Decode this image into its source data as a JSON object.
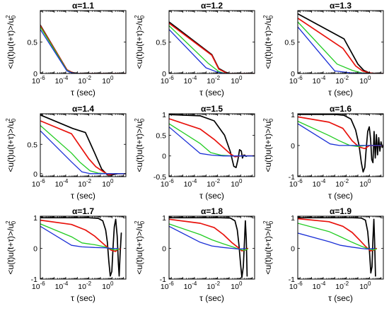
{
  "figure": {
    "ylabel_text": "<u(t)u(t+τ)>/u",
    "ylabel_sup": "2",
    "ylabel_sub": "0",
    "xlabel_text": "τ (sec)",
    "title_prefix": "α",
    "x_ticks": [
      {
        "exp": -6,
        "base": "10",
        "sup": "-6"
      },
      {
        "exp": -4,
        "base": "10",
        "sup": "-4"
      },
      {
        "exp": -2,
        "base": "10",
        "sup": "-2"
      },
      {
        "exp": 0,
        "base": "10",
        "sup": "0"
      }
    ],
    "colors": {
      "black": "#000000",
      "red": "#e8120c",
      "green": "#22cc22",
      "blue": "#1a2fd6"
    }
  },
  "chart_data": [
    {
      "type": "line",
      "title": "α=1.1",
      "xscale": "log",
      "xlim": [
        -6.2,
        1.2
      ],
      "ylim": [
        0,
        1
      ],
      "yticks": [
        0,
        0.5
      ],
      "series": [
        {
          "color": "black",
          "x": [
            -6.2,
            -3.9,
            -3.5,
            -3.2,
            -2.8,
            -2.4,
            1.2
          ],
          "y": [
            0.77,
            0.06,
            0.02,
            0.005,
            0.0,
            0.0,
            0.0
          ]
        },
        {
          "color": "red",
          "x": [
            -6.2,
            -3.9,
            -3.5,
            -3.2,
            -2.8,
            -2.4,
            1.2
          ],
          "y": [
            0.76,
            0.06,
            0.02,
            0.005,
            0.0,
            0.0,
            0.0
          ]
        },
        {
          "color": "green",
          "x": [
            -6.2,
            -3.9,
            -3.5,
            -3.2,
            -2.8,
            -2.4,
            1.2
          ],
          "y": [
            0.74,
            0.05,
            0.015,
            0.004,
            0.0,
            0.0,
            0.0
          ]
        },
        {
          "color": "blue",
          "x": [
            -6.2,
            -3.9,
            -3.5,
            -3.2,
            -2.8,
            -2.4,
            1.2
          ],
          "y": [
            0.7,
            0.04,
            0.012,
            0.003,
            0.0,
            0.0,
            0.0
          ]
        }
      ]
    },
    {
      "type": "line",
      "title": "α=1.2",
      "xscale": "log",
      "xlim": [
        -6.2,
        1.2
      ],
      "ylim": [
        0,
        1
      ],
      "yticks": [
        0,
        0.5
      ],
      "series": [
        {
          "color": "black",
          "x": [
            -6.2,
            -2.5,
            -1.9,
            -1.3,
            -1.0,
            0.0,
            1.2
          ],
          "y": [
            0.82,
            0.3,
            0.08,
            0.02,
            0.0,
            0.0,
            0.0
          ]
        },
        {
          "color": "red",
          "x": [
            -6.2,
            -2.5,
            -1.9,
            -1.3,
            -1.0,
            0.0,
            1.2
          ],
          "y": [
            0.8,
            0.29,
            0.07,
            0.015,
            0.0,
            0.0,
            0.0
          ]
        },
        {
          "color": "green",
          "x": [
            -6.2,
            -2.8,
            -1.9,
            -1.4,
            0.0,
            1.2
          ],
          "y": [
            0.76,
            0.16,
            0.03,
            0.0,
            0.0,
            0.0
          ]
        },
        {
          "color": "blue",
          "x": [
            -6.2,
            -3.0,
            -2.0,
            -1.4,
            0.0,
            1.2
          ],
          "y": [
            0.7,
            0.09,
            0.02,
            0.0,
            0.0,
            0.0
          ]
        }
      ]
    },
    {
      "type": "line",
      "title": "α=1.3",
      "xscale": "log",
      "xlim": [
        -6.2,
        1.2
      ],
      "ylim": [
        0,
        1
      ],
      "yticks": [
        0,
        0.5
      ],
      "series": [
        {
          "color": "black",
          "x": [
            -6.2,
            -2.2,
            -1.0,
            -0.5,
            0.0,
            0.4,
            1.2
          ],
          "y": [
            0.95,
            0.55,
            0.15,
            0.05,
            0.01,
            0.0,
            0.0
          ]
        },
        {
          "color": "red",
          "x": [
            -6.2,
            -2.3,
            -1.2,
            -0.6,
            0.0,
            0.4,
            1.2
          ],
          "y": [
            0.88,
            0.4,
            0.12,
            0.04,
            0.01,
            0.0,
            0.0
          ]
        },
        {
          "color": "green",
          "x": [
            -6.2,
            -2.8,
            -1.5,
            -0.7,
            0.0,
            1.2
          ],
          "y": [
            0.82,
            0.15,
            0.05,
            0.01,
            0.0,
            0.0
          ]
        },
        {
          "color": "blue",
          "x": [
            -6.2,
            -3.0,
            -1.6,
            0.0,
            1.2
          ],
          "y": [
            0.74,
            0.04,
            0.01,
            0.0,
            0.0
          ]
        }
      ]
    },
    {
      "type": "line",
      "title": "α=1.4",
      "xscale": "log",
      "xlim": [
        -6.2,
        1.2
      ],
      "ylim": [
        -0.05,
        1.02
      ],
      "yticks": [
        0,
        0.5
      ],
      "series": [
        {
          "color": "black",
          "x": [
            -6.2,
            -3.4,
            -2.3,
            -1.5,
            -0.9,
            -0.4,
            0.0,
            0.5,
            1.2
          ],
          "y": [
            1.0,
            0.77,
            0.7,
            0.35,
            0.08,
            -0.02,
            -0.02,
            0.0,
            0.0
          ]
        },
        {
          "color": "red",
          "x": [
            -6.2,
            -3.5,
            -2.7,
            -2.0,
            -1.4,
            -0.8,
            -0.3,
            0.2,
            1.2
          ],
          "y": [
            0.9,
            0.68,
            0.45,
            0.25,
            0.12,
            0.04,
            -0.02,
            0.0,
            0.0
          ]
        },
        {
          "color": "green",
          "x": [
            -6.2,
            -3.5,
            -2.8,
            -1.9,
            -1.2,
            -0.5,
            0.2,
            1.2
          ],
          "y": [
            0.82,
            0.35,
            0.2,
            0.05,
            0.01,
            0.0,
            0.0,
            0.0
          ]
        },
        {
          "color": "blue",
          "x": [
            -6.2,
            -3.5,
            -2.6,
            -1.9,
            -1.2,
            0.0,
            1.2
          ],
          "y": [
            0.73,
            0.2,
            0.03,
            0.0,
            0.0,
            0.0,
            0.0
          ]
        }
      ]
    },
    {
      "type": "line",
      "title": "α=1.5",
      "xscale": "log",
      "xlim": [
        -6.2,
        1.2
      ],
      "ylim": [
        -0.5,
        1.02
      ],
      "yticks": [
        -0.5,
        0,
        0.5,
        1
      ],
      "series": [
        {
          "color": "black",
          "x": [
            -6.2,
            -3.5,
            -2.3,
            -1.4,
            -0.9,
            -0.6,
            -0.4,
            -0.25,
            -0.1,
            0.05,
            0.15,
            0.25,
            0.35,
            0.45,
            0.55,
            1.2
          ],
          "y": [
            1.0,
            0.97,
            0.85,
            0.5,
            0.1,
            -0.25,
            -0.28,
            -0.1,
            0.15,
            0.12,
            -0.05,
            0.02,
            0.02,
            -0.01,
            0.0,
            0.0
          ]
        },
        {
          "color": "red",
          "x": [
            -6.2,
            -3.5,
            -2.3,
            -1.5,
            -0.9,
            -0.5,
            0.0,
            1.2
          ],
          "y": [
            0.9,
            0.65,
            0.4,
            0.2,
            0.05,
            -0.02,
            0.0,
            0.0
          ]
        },
        {
          "color": "green",
          "x": [
            -6.2,
            -3.5,
            -2.6,
            -1.7,
            -0.8,
            0.0,
            1.2
          ],
          "y": [
            0.78,
            0.3,
            0.08,
            0.02,
            0.0,
            0.0,
            0.0
          ]
        },
        {
          "color": "blue",
          "x": [
            -6.2,
            -3.5,
            -2.5,
            -1.5,
            0.0,
            1.2
          ],
          "y": [
            0.7,
            0.06,
            0.02,
            0.0,
            0.0,
            0.0
          ]
        }
      ]
    },
    {
      "type": "line",
      "title": "α=1.6",
      "xscale": "log",
      "xlim": [
        -6.2,
        1.2
      ],
      "ylim": [
        -1,
        1.02
      ],
      "yticks": [
        -1,
        0,
        1
      ],
      "series": [
        {
          "color": "black",
          "x": [
            -6.2,
            -3.0,
            -2.2,
            -1.6,
            -1.2,
            -0.9,
            -0.7,
            -0.55,
            -0.4,
            -0.28,
            -0.15,
            -0.02,
            0.1,
            0.2,
            0.3,
            0.4,
            0.5,
            0.6,
            0.7,
            0.8,
            0.9,
            1.0,
            1.1,
            1.2
          ],
          "y": [
            1.0,
            1.0,
            0.97,
            0.85,
            0.5,
            0.0,
            -0.55,
            -0.85,
            -0.7,
            -0.1,
            0.45,
            0.6,
            0.2,
            -0.45,
            -0.55,
            0.45,
            -0.4,
            0.35,
            -0.3,
            0.25,
            -0.18,
            0.12,
            -0.06,
            0.02
          ]
        },
        {
          "color": "red",
          "x": [
            -6.2,
            -3.5,
            -2.3,
            -1.5,
            -0.9,
            -0.4,
            0.0,
            1.2
          ],
          "y": [
            0.92,
            0.75,
            0.55,
            0.15,
            -0.05,
            -0.1,
            0.0,
            0.0
          ]
        },
        {
          "color": "green",
          "x": [
            -6.2,
            -3.5,
            -2.6,
            -1.7,
            -1.0,
            -0.3,
            1.2
          ],
          "y": [
            0.78,
            0.32,
            0.15,
            0.0,
            -0.03,
            0.0,
            0.0
          ]
        },
        {
          "color": "blue",
          "x": [
            -6.2,
            -3.4,
            -2.6,
            -1.5,
            0.0,
            1.2
          ],
          "y": [
            0.7,
            0.05,
            0.0,
            0.0,
            0.0,
            0.0
          ]
        }
      ]
    },
    {
      "type": "line",
      "title": "α=1.7",
      "xscale": "log",
      "xlim": [
        -6.2,
        1.2
      ],
      "ylim": [
        -1,
        1.05
      ],
      "yticks": [
        -1,
        0,
        1
      ],
      "series": [
        {
          "color": "black",
          "x": [
            -6.2,
            -2.0,
            -1.2,
            -0.8,
            -0.55,
            -0.4,
            -0.28,
            -0.15,
            -0.02,
            0.1,
            0.2,
            0.32,
            0.45,
            0.55,
            0.62,
            0.7,
            0.8
          ],
          "y": [
            1.0,
            1.0,
            0.98,
            0.9,
            0.6,
            0.2,
            -0.4,
            -0.9,
            -0.75,
            0.1,
            0.7,
            0.95,
            0.4,
            -0.5,
            -0.9,
            -0.2,
            0.5
          ]
        },
        {
          "color": "red",
          "x": [
            -6.2,
            -3.5,
            -2.3,
            -1.5,
            -0.6,
            -0.1,
            0.3,
            0.5,
            0.7
          ],
          "y": [
            0.92,
            0.78,
            0.6,
            0.4,
            0.1,
            -0.05,
            -0.1,
            -0.02,
            -0.02
          ]
        },
        {
          "color": "green",
          "x": [
            -6.2,
            -3.5,
            -2.6,
            -1.5,
            -0.6,
            -0.1,
            0.3,
            0.6
          ],
          "y": [
            0.8,
            0.38,
            0.18,
            0.12,
            0.05,
            -0.02,
            -0.05,
            -0.02
          ]
        },
        {
          "color": "blue",
          "x": [
            -6.2,
            -3.5,
            -2.6,
            -1.5,
            -0.6,
            0.0,
            0.5
          ],
          "y": [
            0.72,
            0.1,
            0.05,
            0.03,
            0.02,
            0.0,
            0.0
          ]
        }
      ]
    },
    {
      "type": "line",
      "title": "α=1.8",
      "xscale": "log",
      "xlim": [
        -6.2,
        1.2
      ],
      "ylim": [
        -1,
        1.05
      ],
      "yticks": [
        -1,
        0,
        1
      ],
      "series": [
        {
          "color": "black",
          "x": [
            -6.2,
            -1.8,
            -0.9,
            -0.5,
            -0.3,
            -0.15,
            -0.02,
            0.1,
            0.22,
            0.32,
            0.4,
            0.48,
            0.55
          ],
          "y": [
            1.0,
            1.0,
            0.99,
            0.9,
            0.6,
            0.1,
            -0.5,
            -0.95,
            -0.6,
            0.2,
            0.9,
            0.3,
            -0.9
          ]
        },
        {
          "color": "red",
          "x": [
            -6.2,
            -3.5,
            -2.3,
            -1.5,
            -0.8,
            -0.3,
            0.1,
            0.4,
            0.6
          ],
          "y": [
            0.95,
            0.82,
            0.68,
            0.45,
            0.2,
            0.05,
            -0.08,
            -0.05,
            0.0
          ]
        },
        {
          "color": "green",
          "x": [
            -6.2,
            -3.5,
            -2.5,
            -1.5,
            -0.7,
            -0.2,
            0.3,
            0.6
          ],
          "y": [
            0.8,
            0.45,
            0.28,
            0.15,
            0.05,
            -0.02,
            -0.06,
            -0.02
          ]
        },
        {
          "color": "blue",
          "x": [
            -6.2,
            -3.5,
            -2.5,
            -1.5,
            -0.7,
            -0.2,
            0.4
          ],
          "y": [
            0.72,
            0.2,
            0.08,
            0.03,
            0.0,
            -0.02,
            0.0
          ]
        }
      ]
    },
    {
      "type": "line",
      "title": "α=1.9",
      "xscale": "log",
      "xlim": [
        -6.2,
        1.2
      ],
      "ylim": [
        -1,
        1.05
      ],
      "yticks": [
        -1,
        0,
        1
      ],
      "series": [
        {
          "color": "black",
          "x": [
            -6.2,
            -1.5,
            -0.7,
            -0.35,
            -0.15,
            0.0,
            0.12,
            0.22,
            0.3,
            0.38,
            0.45,
            0.52
          ],
          "y": [
            1.0,
            1.0,
            0.99,
            0.92,
            0.55,
            -0.1,
            -0.8,
            -0.6,
            0.3,
            0.95,
            0.2,
            -0.9
          ]
        },
        {
          "color": "red",
          "x": [
            -6.2,
            -3.5,
            -2.3,
            -1.5,
            -0.8,
            -0.3,
            0.1,
            0.4,
            0.6
          ],
          "y": [
            0.97,
            0.87,
            0.72,
            0.52,
            0.25,
            0.05,
            -0.08,
            -0.05,
            0.0
          ]
        },
        {
          "color": "green",
          "x": [
            -6.2,
            -3.5,
            -2.5,
            -1.5,
            -0.7,
            -0.2,
            0.3,
            0.6
          ],
          "y": [
            0.82,
            0.55,
            0.38,
            0.2,
            0.07,
            0.0,
            -0.05,
            -0.02
          ]
        },
        {
          "color": "blue",
          "x": [
            -6.2,
            -3.5,
            -2.5,
            -1.5,
            -0.7,
            -0.2,
            0.4
          ],
          "y": [
            0.5,
            0.22,
            0.1,
            0.04,
            0.0,
            -0.02,
            0.0
          ]
        }
      ]
    }
  ]
}
